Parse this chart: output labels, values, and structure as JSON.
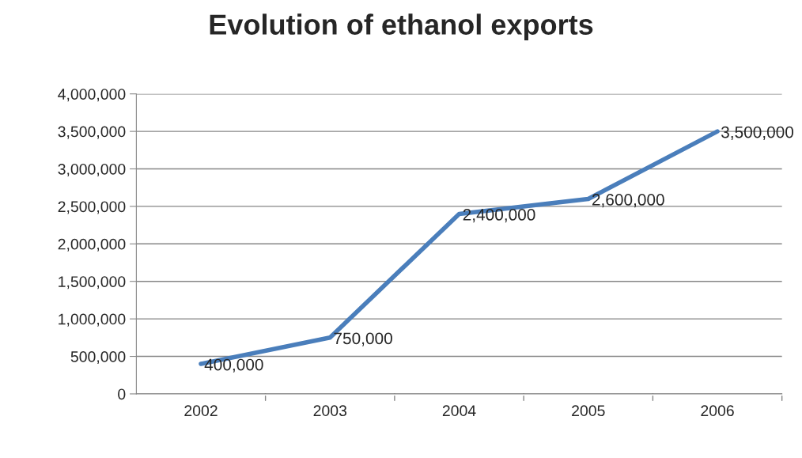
{
  "chart_data": {
    "type": "line",
    "title": "Evolution of ethanol exports",
    "categories": [
      "2002",
      "2003",
      "2004",
      "2005",
      "2006"
    ],
    "series": [
      {
        "color": "#4a7ebb",
        "values": [
          400000,
          750000,
          2400000,
          2600000,
          3500000
        ],
        "value_labels": [
          "400,000",
          "750,000",
          "2,400,000",
          "2,600,000",
          "3,500,000"
        ]
      }
    ],
    "ylim": [
      0,
      4000000
    ],
    "yticks": [
      0,
      {
        "value": 500000,
        "label": "500,000"
      },
      {
        "value": 1000000,
        "label": "1,000,000"
      },
      {
        "value": 1500000,
        "label": "1,500,000"
      },
      {
        "value": 2000000,
        "label": "2,000,000"
      },
      {
        "value": 2500000,
        "label": "2,500,000"
      },
      {
        "value": 3000000,
        "label": "3,000,000"
      },
      {
        "value": 3500000,
        "label": "3,500,000"
      },
      {
        "value": 4000000,
        "label": "4,000,000"
      }
    ],
    "grid": "y",
    "marker": "none",
    "line_style": "solid",
    "legend": false
  }
}
